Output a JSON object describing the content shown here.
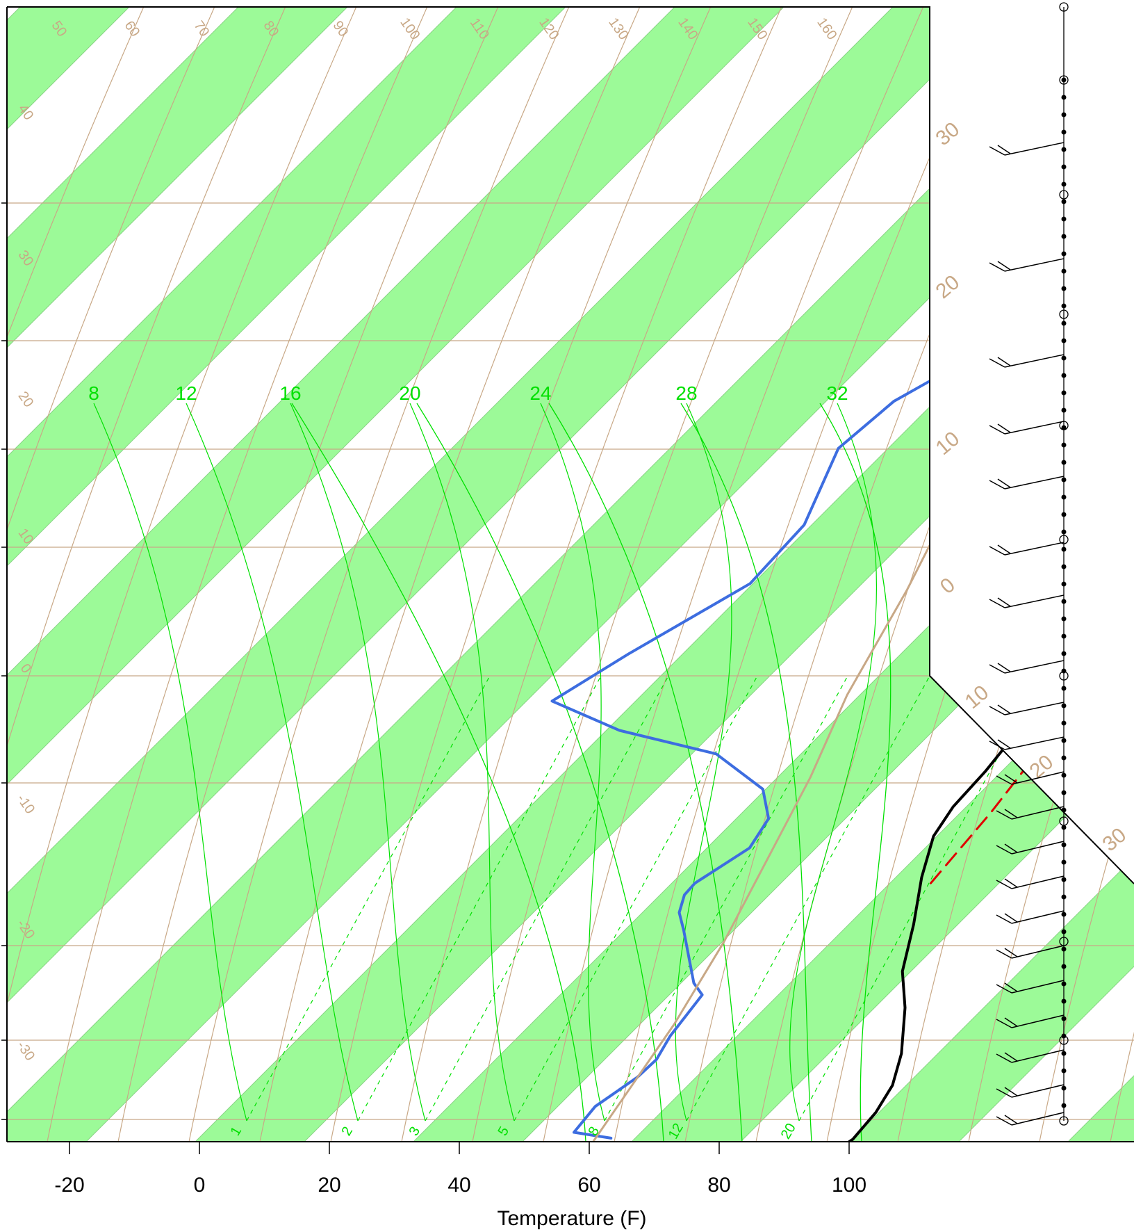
{
  "chart_data": {
    "type": "skew-t",
    "xlabel": "Temperature (F)",
    "x_ticks": [
      -20,
      0,
      20,
      40,
      60,
      80,
      100
    ],
    "xlim": [
      -28.5,
      124.7
    ],
    "grid": true,
    "colors": {
      "band": "#9cfa98",
      "isotherm": "#c8a886",
      "mixing_ratio": "#00e000",
      "temperature": "#000000",
      "dewpoint": "#3d6de0",
      "parcel": "#e00000",
      "reference": "#c8a886"
    },
    "side_isotherm_labels": [
      "30",
      "20",
      "10",
      "0",
      "10",
      "20",
      "30"
    ],
    "left_isotherm_labels": [
      "40",
      "30",
      "20",
      "10",
      "0",
      "-10",
      "-20",
      "-30"
    ],
    "adiabat_labels": [
      "50",
      "60",
      "70",
      "80",
      "90",
      "100",
      "110",
      "120",
      "130",
      "140",
      "150",
      "160"
    ],
    "mixing_ratio_labels_top": [
      "8",
      "12",
      "16",
      "20",
      "24",
      "28",
      "32"
    ],
    "mixing_ratio_labels_bottom": [
      "1",
      "2",
      "3",
      "5",
      "8",
      "12",
      "20"
    ],
    "series": [
      {
        "role": "temperature",
        "points": [
          [
            100,
            0
          ],
          [
            100.2,
            0.2
          ],
          [
            99.6,
            2.5
          ],
          [
            98,
            4.8
          ],
          [
            94.5,
            7.5
          ],
          [
            88,
            11.4
          ],
          [
            82,
            14.5
          ],
          [
            76.5,
            18.5
          ],
          [
            70.5,
            22.5
          ],
          [
            66,
            26
          ],
          [
            64.5,
            28.5
          ],
          [
            64,
            31.5
          ],
          [
            62.6,
            35.5
          ],
          [
            59.8,
            39
          ],
          [
            54.4,
            44
          ],
          [
            48.5,
            49
          ],
          [
            45.3,
            53
          ],
          [
            41.5,
            57.5
          ],
          [
            33.8,
            66
          ],
          [
            30.5,
            74.5
          ],
          [
            30,
            83.5
          ],
          [
            30,
            93
          ]
        ]
      },
      {
        "role": "dewpoint",
        "points": [
          [
            62.8,
            0.3
          ],
          [
            56.2,
            0.8
          ],
          [
            55.5,
            3
          ],
          [
            57.5,
            5.5
          ],
          [
            57.7,
            7
          ],
          [
            56.2,
            9
          ],
          [
            55.2,
            11.5
          ],
          [
            54.8,
            12.5
          ],
          [
            51.7,
            13.5
          ],
          [
            42,
            18
          ],
          [
            38.6,
            19.5
          ],
          [
            36.7,
            21
          ],
          [
            36.5,
            22
          ],
          [
            39.5,
            25
          ],
          [
            37.9,
            27.5
          ],
          [
            32.5,
            30
          ],
          [
            19.9,
            33
          ],
          [
            1.4,
            35
          ],
          [
            -13.5,
            37.5
          ],
          [
            -9,
            41.5
          ],
          [
            -1.1,
            47.5
          ],
          [
            -1.8,
            52.5
          ],
          [
            -8.3,
            59
          ],
          [
            -7,
            63
          ],
          [
            2.1,
            69.5
          ],
          [
            9.5,
            76.5
          ],
          [
            15.7,
            88
          ]
        ]
      },
      {
        "role": "parcel",
        "points": [
          [
            72.8,
            22
          ],
          [
            71.2,
            28
          ],
          [
            68.8,
            34
          ],
          [
            66,
            40
          ],
          [
            62.5,
            46
          ],
          [
            58.5,
            52
          ],
          [
            54,
            57
          ],
          [
            49,
            61
          ],
          [
            43.3,
            65
          ]
        ]
      },
      {
        "role": "reference",
        "points": [
          [
            60.6,
            0
          ],
          [
            55,
            10
          ],
          [
            50,
            17
          ],
          [
            44,
            24
          ],
          [
            38,
            31
          ],
          [
            31,
            38
          ],
          [
            24,
            47
          ],
          [
            16,
            56
          ],
          [
            10,
            65
          ],
          [
            6,
            70
          ],
          [
            27,
            77
          ],
          [
            46,
            84
          ],
          [
            63,
            90
          ],
          [
            77,
            95
          ]
        ]
      }
    ]
  }
}
